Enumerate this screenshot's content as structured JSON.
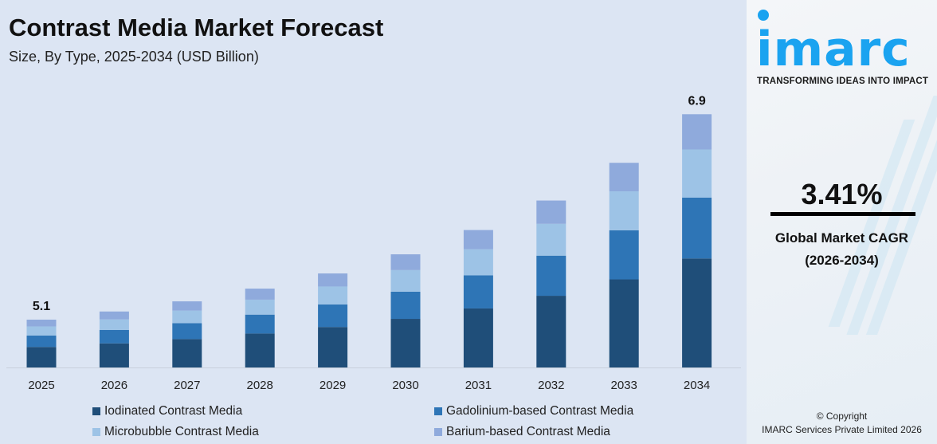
{
  "chart_data": {
    "type": "bar",
    "stacked": true,
    "title": "Contrast Media Market Forecast",
    "subtitle": "Size, By Type, 2025-2034 (USD Billion)",
    "xlabel": "",
    "ylabel": "",
    "grid": false,
    "legend_placement": "bottom",
    "categories": [
      "2025",
      "2026",
      "2027",
      "2028",
      "2029",
      "2030",
      "2031",
      "2032",
      "2033",
      "2034"
    ],
    "series": [
      {
        "name": "Iodinated Contrast Media",
        "color": "#1f4e79",
        "values": [
          2.19,
          2.27,
          2.34,
          2.43,
          2.51,
          2.59,
          2.68,
          2.77,
          2.87,
          2.97
        ]
      },
      {
        "name": "Gadolinium-based Contrast Media",
        "color": "#2e75b6",
        "values": [
          1.22,
          1.26,
          1.31,
          1.35,
          1.4,
          1.45,
          1.5,
          1.55,
          1.6,
          1.66
        ]
      },
      {
        "name": "Microbubble Contrast Media",
        "color": "#9dc3e6",
        "values": [
          0.97,
          1.0,
          1.04,
          1.07,
          1.11,
          1.15,
          1.19,
          1.23,
          1.27,
          1.31
        ]
      },
      {
        "name": "Barium-based Contrast Media",
        "color": "#8faadc",
        "values": [
          0.72,
          0.74,
          0.76,
          0.79,
          0.81,
          0.84,
          0.87,
          0.9,
          0.93,
          0.96
        ]
      }
    ],
    "data_labels": [
      {
        "category": "2025",
        "text": "5.1"
      },
      {
        "category": "2034",
        "text": "6.9"
      }
    ]
  },
  "brand": {
    "logo": "imarc",
    "tagline": "TRANSFORMING IDEAS INTO IMPACT",
    "color": "#1aa3f0"
  },
  "cagr": {
    "value": "3.41%",
    "label": "Global Market CAGR",
    "period": "(2026-2034)"
  },
  "copyright": {
    "line1": "© Copyright",
    "line2": "IMARC Services Private Limited 2026"
  }
}
